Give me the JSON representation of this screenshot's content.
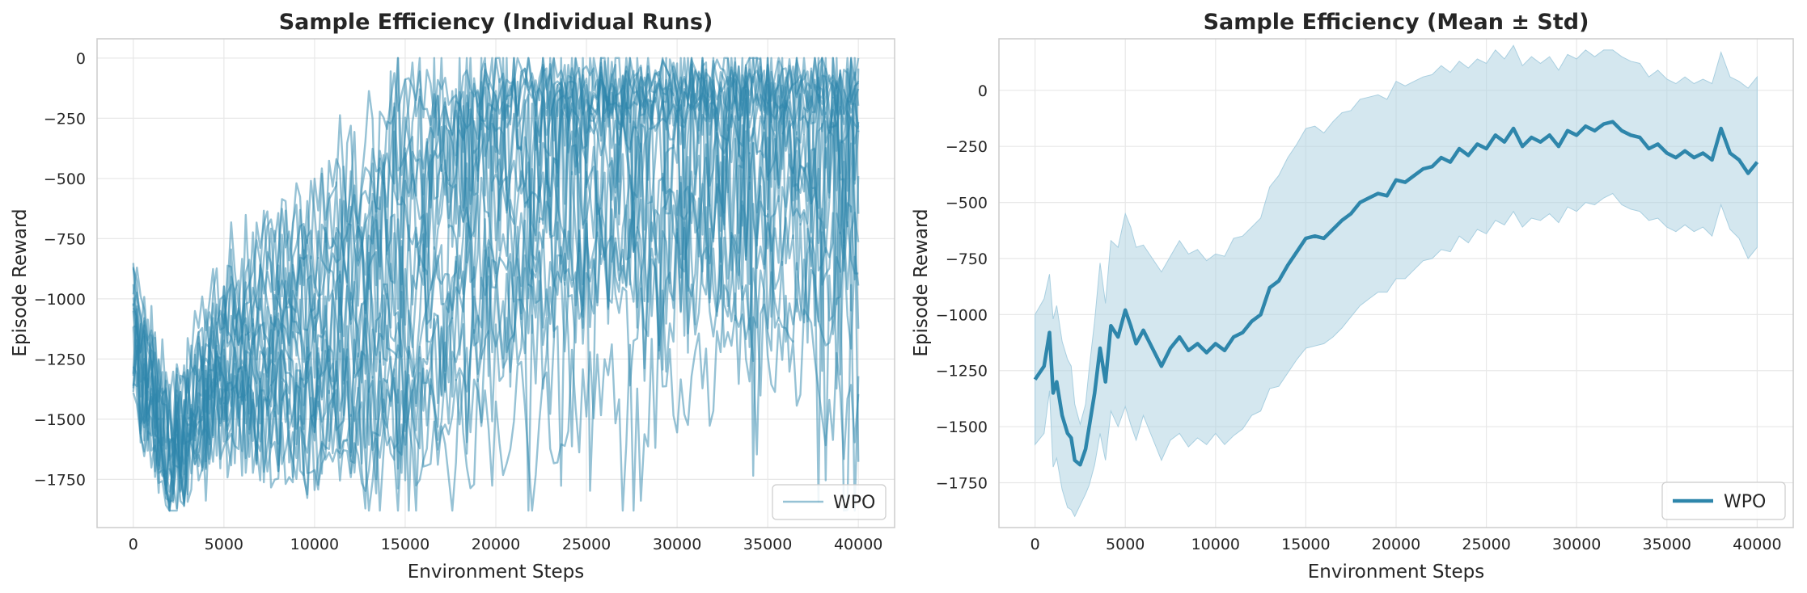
{
  "chart_data": [
    {
      "type": "line",
      "title": "Sample Efficiency (Individual Runs)",
      "xlabel": "Environment Steps",
      "ylabel": "Episode Reward",
      "xlim": [
        -2000,
        42000
      ],
      "ylim": [
        -1950,
        80
      ],
      "xticks": [
        0,
        5000,
        10000,
        15000,
        20000,
        25000,
        30000,
        35000,
        40000
      ],
      "yticks": [
        -1750,
        -1500,
        -1250,
        -1000,
        -750,
        -500,
        -250,
        0
      ],
      "grid": true,
      "legend": {
        "position": "bottom-right",
        "entries": [
          "WPO"
        ]
      },
      "color": "#2e86ab",
      "opacity": 0.5,
      "n_runs": 20,
      "x_range": [
        0,
        40000
      ],
      "step": 200,
      "series": [
        {
          "name": "WPO",
          "description": "20 individual training runs",
          "knots_x": [
            0,
            2000,
            5000,
            10000,
            15000,
            20000,
            25000,
            30000,
            35000,
            40000
          ]
        },
        {
          "run": 1,
          "knots_y": [
            -1100,
            -1600,
            -1100,
            -600,
            -130,
            -120,
            -120,
            -120,
            -120,
            -120
          ]
        },
        {
          "run": 2,
          "knots_y": [
            -1200,
            -1650,
            -1000,
            -700,
            -300,
            -130,
            -120,
            -120,
            -120,
            -130
          ]
        },
        {
          "run": 3,
          "knots_y": [
            -1000,
            -1500,
            -900,
            -800,
            -400,
            -150,
            -120,
            -120,
            -150,
            -200
          ]
        },
        {
          "run": 4,
          "knots_y": [
            -1250,
            -1700,
            -1200,
            -900,
            -500,
            -200,
            -150,
            -120,
            -120,
            -150
          ]
        },
        {
          "run": 5,
          "knots_y": [
            -1150,
            -1600,
            -1300,
            -1000,
            -600,
            -300,
            -200,
            -150,
            -150,
            -200
          ]
        },
        {
          "run": 6,
          "knots_y": [
            -1300,
            -1700,
            -1400,
            -1100,
            -800,
            -400,
            -250,
            -200,
            -200,
            -250
          ]
        },
        {
          "run": 7,
          "knots_y": [
            -1100,
            -1550,
            -1200,
            -1200,
            -900,
            -500,
            -300,
            -250,
            -300,
            -350
          ]
        },
        {
          "run": 8,
          "knots_y": [
            -1200,
            -1650,
            -1400,
            -1300,
            -1000,
            -600,
            -400,
            -300,
            -300,
            -400
          ]
        },
        {
          "run": 9,
          "knots_y": [
            -1050,
            -1600,
            -1300,
            -1400,
            -1100,
            -700,
            -500,
            -400,
            -400,
            -500
          ]
        },
        {
          "run": 10,
          "knots_y": [
            -1250,
            -1700,
            -1500,
            -1450,
            -1200,
            -800,
            -600,
            -500,
            -500,
            -600
          ]
        },
        {
          "run": 11,
          "knots_y": [
            -1150,
            -1600,
            -1400,
            -1500,
            -1300,
            -900,
            -700,
            -650,
            -700,
            -700
          ]
        },
        {
          "run": 12,
          "knots_y": [
            -1300,
            -1750,
            -1500,
            -1550,
            -1400,
            -1000,
            -850,
            -800,
            -900,
            -1000
          ]
        },
        {
          "run": 13,
          "knots_y": [
            -1100,
            -1650,
            -1450,
            -1500,
            -1500,
            -1100,
            -900,
            -700,
            -600,
            -650
          ]
        },
        {
          "run": 14,
          "knots_y": [
            -1200,
            -1700,
            -1300,
            -1300,
            -1550,
            -1300,
            -1000,
            -950,
            -1000,
            -1100
          ]
        },
        {
          "run": 15,
          "knots_y": [
            -1000,
            -1600,
            -1200,
            -1000,
            -700,
            -400,
            -300,
            -250,
            -300,
            -300
          ]
        },
        {
          "run": 16,
          "knots_y": [
            -1250,
            -1650,
            -1100,
            -800,
            -500,
            -300,
            -200,
            -200,
            -250,
            -250
          ]
        },
        {
          "run": 17,
          "knots_y": [
            -1150,
            -1600,
            -1000,
            -900,
            -600,
            -200,
            -150,
            -150,
            -200,
            -250
          ]
        },
        {
          "run": 18,
          "knots_y": [
            -1100,
            -1700,
            -1300,
            -1200,
            -1000,
            -700,
            -600,
            -550,
            -600,
            -650
          ]
        },
        {
          "run": 19,
          "knots_y": [
            -1200,
            -1650,
            -1450,
            -1600,
            -1550,
            -1530,
            -1400,
            -1300,
            -1100,
            -1600
          ]
        },
        {
          "run": 20,
          "knots_y": [
            -1300,
            -1750,
            -1500,
            -1580,
            -1520,
            -1000,
            -900,
            -800,
            -800,
            -900
          ]
        }
      ]
    },
    {
      "type": "line",
      "title": "Sample Efficiency (Mean ± Std)",
      "xlabel": "Environment Steps",
      "ylabel": "Episode Reward",
      "xlim": [
        -2000,
        42000
      ],
      "ylim": [
        -1950,
        230
      ],
      "xticks": [
        0,
        5000,
        10000,
        15000,
        20000,
        25000,
        30000,
        35000,
        40000
      ],
      "yticks": [
        -1750,
        -1500,
        -1250,
        -1000,
        -750,
        -500,
        -250,
        0
      ],
      "grid": true,
      "legend": {
        "position": "bottom-right",
        "entries": [
          "WPO"
        ]
      },
      "color": "#2e86ab",
      "band_color": "#a9cfe0",
      "series": [
        {
          "name": "WPO",
          "x": [
            0,
            500,
            800,
            1000,
            1200,
            1500,
            1800,
            2000,
            2200,
            2500,
            2800,
            3000,
            3300,
            3600,
            3900,
            4200,
            4600,
            5000,
            5300,
            5600,
            6000,
            6500,
            7000,
            7500,
            8000,
            8500,
            9000,
            9500,
            10000,
            10500,
            11000,
            11500,
            12000,
            12500,
            13000,
            13500,
            14000,
            14500,
            15000,
            15500,
            16000,
            16500,
            17000,
            17500,
            18000,
            18500,
            19000,
            19500,
            20000,
            20500,
            21000,
            21500,
            22000,
            22500,
            23000,
            23500,
            24000,
            24500,
            25000,
            25500,
            26000,
            26500,
            27000,
            27500,
            28000,
            28500,
            29000,
            29500,
            30000,
            30500,
            31000,
            31500,
            32000,
            32500,
            33000,
            33500,
            34000,
            34500,
            35000,
            35500,
            36000,
            36500,
            37000,
            37500,
            38000,
            38500,
            39000,
            39500,
            40000
          ],
          "mean": [
            -1290,
            -1230,
            -1080,
            -1350,
            -1300,
            -1450,
            -1530,
            -1550,
            -1650,
            -1670,
            -1600,
            -1500,
            -1350,
            -1150,
            -1300,
            -1050,
            -1100,
            -980,
            -1050,
            -1130,
            -1070,
            -1150,
            -1230,
            -1150,
            -1100,
            -1160,
            -1130,
            -1170,
            -1130,
            -1160,
            -1100,
            -1080,
            -1030,
            -1000,
            -880,
            -850,
            -780,
            -720,
            -660,
            -650,
            -660,
            -620,
            -580,
            -550,
            -500,
            -480,
            -460,
            -470,
            -400,
            -410,
            -380,
            -350,
            -340,
            -300,
            -320,
            -260,
            -290,
            -240,
            -260,
            -200,
            -230,
            -170,
            -250,
            -210,
            -230,
            -200,
            -250,
            -180,
            -200,
            -160,
            -180,
            -150,
            -140,
            -180,
            -200,
            -210,
            -260,
            -240,
            -280,
            -300,
            -270,
            -300,
            -280,
            -310,
            -170,
            -280,
            -310,
            -370,
            -320
          ],
          "std": [
            290,
            300,
            260,
            330,
            340,
            330,
            330,
            320,
            250,
            180,
            200,
            260,
            320,
            380,
            350,
            380,
            400,
            430,
            440,
            430,
            380,
            400,
            420,
            410,
            430,
            430,
            420,
            410,
            400,
            420,
            440,
            430,
            420,
            430,
            450,
            470,
            480,
            480,
            490,
            490,
            470,
            480,
            480,
            460,
            460,
            450,
            440,
            430,
            440,
            430,
            420,
            410,
            410,
            410,
            400,
            390,
            390,
            380,
            380,
            380,
            370,
            370,
            360,
            360,
            350,
            350,
            340,
            340,
            340,
            340,
            330,
            330,
            320,
            330,
            330,
            330,
            320,
            330,
            330,
            330,
            330,
            330,
            330,
            340,
            340,
            340,
            350,
            380,
            380
          ]
        }
      ]
    }
  ]
}
